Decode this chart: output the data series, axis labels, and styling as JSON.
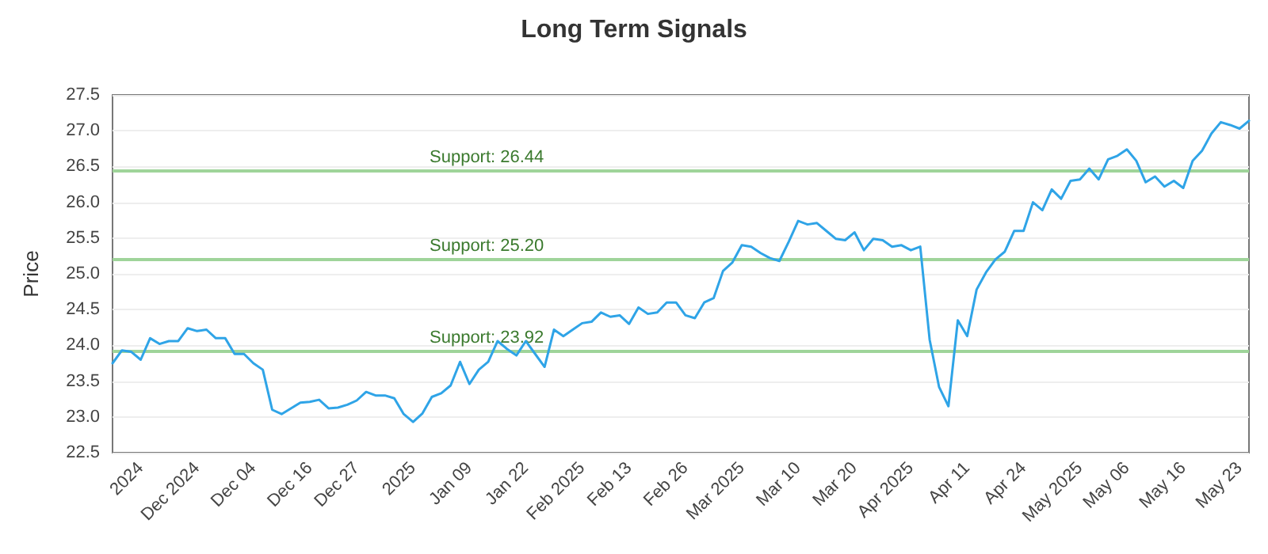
{
  "chart_data": {
    "type": "line",
    "title": "Long Term Signals",
    "ylabel": "Price",
    "categories": [
      null,
      null,
      null,
      "2024",
      null,
      null,
      null,
      null,
      null,
      "Dec 2024",
      null,
      null,
      null,
      null,
      null,
      "Dec 04",
      null,
      null,
      null,
      null,
      null,
      "Dec 16",
      null,
      null,
      null,
      null,
      "Dec 27",
      null,
      null,
      null,
      null,
      null,
      "2025",
      null,
      null,
      null,
      null,
      null,
      "Jan 09",
      null,
      null,
      null,
      null,
      null,
      "Jan 22",
      null,
      null,
      null,
      null,
      null,
      "Feb 2025",
      null,
      null,
      null,
      null,
      "Feb 13",
      null,
      null,
      null,
      null,
      null,
      "Feb 26",
      null,
      null,
      null,
      null,
      null,
      "Mar 2025",
      null,
      null,
      null,
      null,
      null,
      "Mar 10",
      null,
      null,
      null,
      null,
      null,
      "Mar 20",
      null,
      null,
      null,
      null,
      null,
      "Apr 2025",
      null,
      null,
      null,
      null,
      null,
      "Apr 11",
      null,
      null,
      null,
      null,
      null,
      "Apr 24",
      null,
      null,
      null,
      null,
      null,
      "May 2025",
      null,
      null,
      null,
      null,
      "May 06",
      null,
      null,
      null,
      null,
      null,
      "May 16",
      null,
      null,
      null,
      null,
      null,
      "May 23",
      null
    ],
    "series": [
      {
        "color": "#2fa4e7",
        "values": [
          23.75,
          23.93,
          23.91,
          23.8,
          24.1,
          24.02,
          24.06,
          24.06,
          24.24,
          24.2,
          24.22,
          24.1,
          24.1,
          23.88,
          23.88,
          23.75,
          23.66,
          23.1,
          23.04,
          23.12,
          23.2,
          23.21,
          23.24,
          23.12,
          23.13,
          23.17,
          23.23,
          23.35,
          23.3,
          23.3,
          23.26,
          23.04,
          22.93,
          23.05,
          23.28,
          23.33,
          23.44,
          23.77,
          23.46,
          23.66,
          23.77,
          24.06,
          23.95,
          23.86,
          24.06,
          23.88,
          23.7,
          24.22,
          24.13,
          24.22,
          24.31,
          24.33,
          24.46,
          24.4,
          24.42,
          24.3,
          24.53,
          24.44,
          24.46,
          24.6,
          24.6,
          24.42,
          24.38,
          24.6,
          24.66,
          25.04,
          25.16,
          25.4,
          25.38,
          25.29,
          25.22,
          25.18,
          25.45,
          25.74,
          25.69,
          25.71,
          25.6,
          25.49,
          25.47,
          25.58,
          25.33,
          25.49,
          25.47,
          25.38,
          25.4,
          25.33,
          25.38,
          24.08,
          23.42,
          23.15,
          24.35,
          24.13,
          24.78,
          25.02,
          25.2,
          25.31,
          25.6,
          25.6,
          26.0,
          25.89,
          26.18,
          26.05,
          26.3,
          26.32,
          26.47,
          26.32,
          26.6,
          26.65,
          26.74,
          26.58,
          26.28,
          26.36,
          26.22,
          26.3,
          26.2,
          26.58,
          26.72,
          26.96,
          27.12,
          27.08,
          27.03,
          27.14
        ]
      }
    ],
    "ylim": [
      22.5,
      27.5
    ],
    "yticks": [
      22.5,
      {
        "value": 23,
        "label": "23.0"
      },
      23.5,
      {
        "value": 24,
        "label": "24.0"
      },
      24.5,
      {
        "value": 25,
        "label": "25.0"
      },
      25.5,
      {
        "value": 26,
        "label": "26.0"
      },
      26.5,
      {
        "value": 27,
        "label": "27.0"
      },
      27.5
    ],
    "grid": "y",
    "marker": "none",
    "line_style": "solid",
    "ref_lines": [
      {
        "axis": "y",
        "value": 26.44,
        "label": "Support: 26.44",
        "color": "#9fd49a"
      },
      {
        "axis": "y",
        "value": 25.2,
        "label": "Support: 25.20",
        "color": "#9fd49a"
      },
      {
        "axis": "y",
        "value": 23.92,
        "label": "Support: 23.92",
        "color": "#9fd49a"
      }
    ]
  }
}
